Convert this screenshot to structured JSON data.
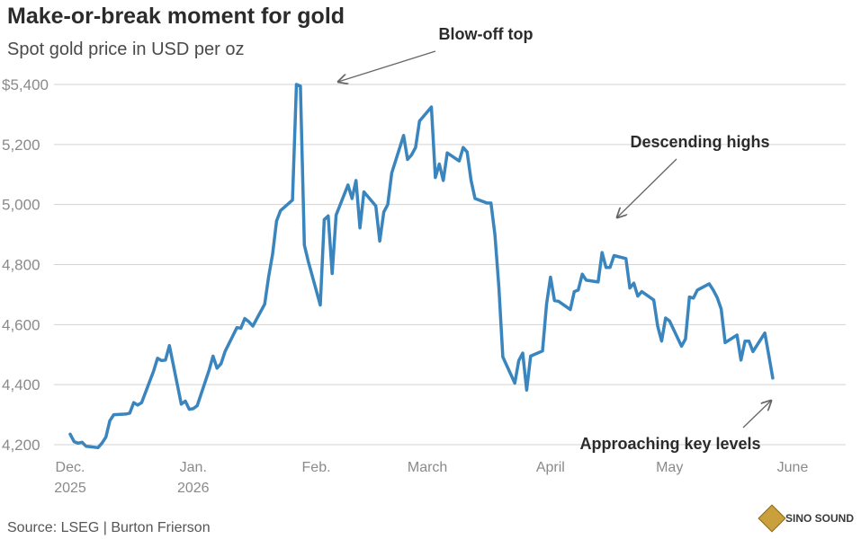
{
  "chart_data": {
    "type": "line",
    "title": "Make-or-break moment for gold",
    "subtitle": "Spot gold price in USD per oz",
    "ylim": [
      4200,
      5400
    ],
    "y_ticks": [
      4200,
      4400,
      4600,
      4800,
      5000,
      5200,
      5400
    ],
    "y_tick_labels": [
      "4,200",
      "4,400",
      "4,600",
      "4,800",
      "5,000",
      "5,200",
      "$5,400"
    ],
    "x_ticks": [
      {
        "date": "2025-12-01",
        "label": "Dec.",
        "label2": "2025"
      },
      {
        "date": "2026-01-01",
        "label": "Jan.",
        "label2": "2026"
      },
      {
        "date": "2026-02-01",
        "label": "Feb.",
        "label2": ""
      },
      {
        "date": "2026-03-01",
        "label": "March",
        "label2": ""
      },
      {
        "date": "2026-04-01",
        "label": "April",
        "label2": ""
      },
      {
        "date": "2026-05-01",
        "label": "May",
        "label2": ""
      },
      {
        "date": "2026-06-01",
        "label": "June",
        "label2": ""
      }
    ],
    "grid": true,
    "series": [
      {
        "name": "",
        "color": "#3a85be",
        "points": [
          [
            "2025-12-01",
            4235
          ],
          [
            "2025-12-02",
            4210
          ],
          [
            "2025-12-03",
            4205
          ],
          [
            "2025-12-04",
            4208
          ],
          [
            "2025-12-05",
            4195
          ],
          [
            "2025-12-08",
            4190
          ],
          [
            "2025-12-09",
            4205
          ],
          [
            "2025-12-10",
            4225
          ],
          [
            "2025-12-11",
            4280
          ],
          [
            "2025-12-12",
            4300
          ],
          [
            "2025-12-15",
            4302
          ],
          [
            "2025-12-16",
            4305
          ],
          [
            "2025-12-17",
            4340
          ],
          [
            "2025-12-18",
            4332
          ],
          [
            "2025-12-19",
            4340
          ],
          [
            "2025-12-22",
            4445
          ],
          [
            "2025-12-23",
            4488
          ],
          [
            "2025-12-24",
            4480
          ],
          [
            "2025-12-25",
            4482
          ],
          [
            "2025-12-26",
            4530
          ],
          [
            "2025-12-29",
            4335
          ],
          [
            "2025-12-30",
            4345
          ],
          [
            "2025-12-31",
            4318
          ],
          [
            "2026-01-01",
            4320
          ],
          [
            "2026-01-02",
            4330
          ],
          [
            "2026-01-05",
            4448
          ],
          [
            "2026-01-06",
            4495
          ],
          [
            "2026-01-07",
            4455
          ],
          [
            "2026-01-08",
            4470
          ],
          [
            "2026-01-09",
            4510
          ],
          [
            "2026-01-12",
            4590
          ],
          [
            "2026-01-13",
            4588
          ],
          [
            "2026-01-14",
            4620
          ],
          [
            "2026-01-15",
            4610
          ],
          [
            "2026-01-16",
            4595
          ],
          [
            "2026-01-19",
            4668
          ],
          [
            "2026-01-20",
            4760
          ],
          [
            "2026-01-21",
            4835
          ],
          [
            "2026-01-22",
            4945
          ],
          [
            "2026-01-23",
            4980
          ],
          [
            "2026-01-26",
            5015
          ],
          [
            "2026-01-27",
            5400
          ],
          [
            "2026-01-28",
            5395
          ],
          [
            "2026-01-29",
            4865
          ],
          [
            "2026-01-30",
            4810
          ],
          [
            "2026-02-02",
            4665
          ],
          [
            "2026-02-03",
            4950
          ],
          [
            "2026-02-04",
            4962
          ],
          [
            "2026-02-05",
            4770
          ],
          [
            "2026-02-06",
            4965
          ],
          [
            "2026-02-09",
            5065
          ],
          [
            "2026-02-10",
            5020
          ],
          [
            "2026-02-11",
            5080
          ],
          [
            "2026-02-12",
            4922
          ],
          [
            "2026-02-13",
            5042
          ],
          [
            "2026-02-16",
            4995
          ],
          [
            "2026-02-17",
            4878
          ],
          [
            "2026-02-18",
            4975
          ],
          [
            "2026-02-19",
            5000
          ],
          [
            "2026-02-20",
            5105
          ],
          [
            "2026-02-23",
            5230
          ],
          [
            "2026-02-24",
            5150
          ],
          [
            "2026-02-25",
            5165
          ],
          [
            "2026-02-26",
            5190
          ],
          [
            "2026-02-27",
            5278
          ],
          [
            "2026-03-02",
            5325
          ],
          [
            "2026-03-03",
            5090
          ],
          [
            "2026-03-04",
            5135
          ],
          [
            "2026-03-05",
            5080
          ],
          [
            "2026-03-06",
            5172
          ],
          [
            "2026-03-09",
            5145
          ],
          [
            "2026-03-10",
            5190
          ],
          [
            "2026-03-11",
            5175
          ],
          [
            "2026-03-12",
            5080
          ],
          [
            "2026-03-13",
            5020
          ],
          [
            "2026-03-16",
            5005
          ],
          [
            "2026-03-17",
            5005
          ],
          [
            "2026-03-18",
            4900
          ],
          [
            "2026-03-19",
            4725
          ],
          [
            "2026-03-20",
            4492
          ],
          [
            "2026-03-23",
            4405
          ],
          [
            "2026-03-24",
            4480
          ],
          [
            "2026-03-25",
            4505
          ],
          [
            "2026-03-26",
            4382
          ],
          [
            "2026-03-27",
            4495
          ],
          [
            "2026-03-30",
            4512
          ],
          [
            "2026-03-31",
            4668
          ],
          [
            "2026-04-01",
            4758
          ],
          [
            "2026-04-02",
            4680
          ],
          [
            "2026-04-03",
            4678
          ],
          [
            "2026-04-06",
            4650
          ],
          [
            "2026-04-07",
            4710
          ],
          [
            "2026-04-08",
            4715
          ],
          [
            "2026-04-09",
            4768
          ],
          [
            "2026-04-10",
            4748
          ],
          [
            "2026-04-13",
            4742
          ],
          [
            "2026-04-14",
            4840
          ],
          [
            "2026-04-15",
            4790
          ],
          [
            "2026-04-16",
            4790
          ],
          [
            "2026-04-17",
            4830
          ],
          [
            "2026-04-20",
            4820
          ],
          [
            "2026-04-21",
            4722
          ],
          [
            "2026-04-22",
            4738
          ],
          [
            "2026-04-23",
            4695
          ],
          [
            "2026-04-24",
            4710
          ],
          [
            "2026-04-27",
            4682
          ],
          [
            "2026-04-28",
            4595
          ],
          [
            "2026-04-29",
            4545
          ],
          [
            "2026-04-30",
            4622
          ],
          [
            "2026-05-01",
            4612
          ],
          [
            "2026-05-04",
            4528
          ],
          [
            "2026-05-05",
            4552
          ],
          [
            "2026-05-06",
            4692
          ],
          [
            "2026-05-07",
            4688
          ],
          [
            "2026-05-08",
            4715
          ],
          [
            "2026-05-11",
            4736
          ],
          [
            "2026-05-12",
            4715
          ],
          [
            "2026-05-13",
            4690
          ],
          [
            "2026-05-14",
            4652
          ],
          [
            "2026-05-15",
            4540
          ],
          [
            "2026-05-18",
            4565
          ],
          [
            "2026-05-19",
            4482
          ],
          [
            "2026-05-20",
            4545
          ],
          [
            "2026-05-21",
            4545
          ],
          [
            "2026-05-22",
            4510
          ],
          [
            "2026-05-25",
            4572
          ],
          [
            "2026-05-26",
            4498
          ],
          [
            "2026-05-27",
            4422
          ]
        ]
      }
    ],
    "annotations": [
      {
        "text": "Blow-off top",
        "point": [
          "2026-01-28",
          5400
        ]
      },
      {
        "text": "Descending highs",
        "point": [
          "2026-04-17",
          4960
        ]
      },
      {
        "text": "Approaching key levels",
        "point": [
          "2026-05-28",
          4350
        ]
      }
    ]
  },
  "footer": {
    "source": "Source: LSEG | Burton Frierson",
    "logo_text": "SINO SOUND"
  }
}
